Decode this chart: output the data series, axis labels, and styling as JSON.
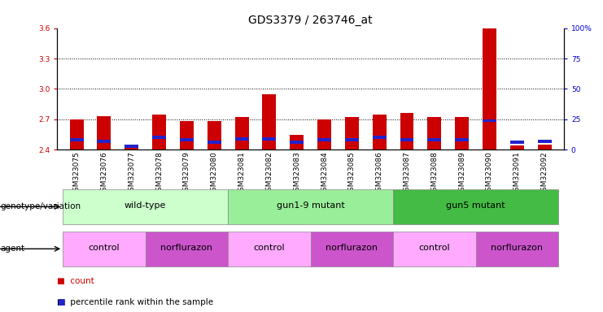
{
  "title": "GDS3379 / 263746_at",
  "samples": [
    "GSM323075",
    "GSM323076",
    "GSM323077",
    "GSM323078",
    "GSM323079",
    "GSM323080",
    "GSM323081",
    "GSM323082",
    "GSM323083",
    "GSM323084",
    "GSM323085",
    "GSM323086",
    "GSM323087",
    "GSM323088",
    "GSM323089",
    "GSM323090",
    "GSM323091",
    "GSM323092"
  ],
  "red_values": [
    2.7,
    2.73,
    2.42,
    2.75,
    2.68,
    2.68,
    2.72,
    2.95,
    2.55,
    2.7,
    2.72,
    2.75,
    2.76,
    2.72,
    2.72,
    3.6,
    2.44,
    2.45
  ],
  "blue_pct": [
    8,
    7,
    3,
    10,
    8,
    6,
    9,
    9,
    6,
    8,
    8,
    10,
    8,
    8,
    8,
    24,
    6,
    7
  ],
  "ylim": [
    2.4,
    3.6
  ],
  "yticks_left": [
    2.4,
    2.7,
    3.0,
    3.3,
    3.6
  ],
  "yticks_right": [
    0,
    25,
    50,
    75,
    100
  ],
  "grid_values": [
    2.7,
    3.0,
    3.3
  ],
  "bar_width": 0.5,
  "bar_bottom": 2.4,
  "bar_color_red": "#cc0000",
  "bar_color_blue": "#2222cc",
  "groups": [
    {
      "label": "wild-type",
      "start": 0,
      "end": 6,
      "color": "#ccffcc"
    },
    {
      "label": "gun1-9 mutant",
      "start": 6,
      "end": 12,
      "color": "#99ee99"
    },
    {
      "label": "gun5 mutant",
      "start": 12,
      "end": 18,
      "color": "#44bb44"
    }
  ],
  "agents": [
    {
      "label": "control",
      "start": 0,
      "end": 3,
      "color": "#ffaaff"
    },
    {
      "label": "norflurazon",
      "start": 3,
      "end": 6,
      "color": "#cc55cc"
    },
    {
      "label": "control",
      "start": 6,
      "end": 9,
      "color": "#ffaaff"
    },
    {
      "label": "norflurazon",
      "start": 9,
      "end": 12,
      "color": "#cc55cc"
    },
    {
      "label": "control",
      "start": 12,
      "end": 15,
      "color": "#ffaaff"
    },
    {
      "label": "norflurazon",
      "start": 15,
      "end": 18,
      "color": "#cc55cc"
    }
  ],
  "left_tick_color": "#cc0000",
  "right_tick_color": "#0000cc",
  "title_fontsize": 10,
  "tick_fontsize": 6.5,
  "label_fontsize": 7.5,
  "group_fontsize": 8,
  "agent_fontsize": 8,
  "legend_count_color": "#cc0000",
  "legend_pct_color": "#2222cc",
  "xtick_bg_color": "#cccccc"
}
